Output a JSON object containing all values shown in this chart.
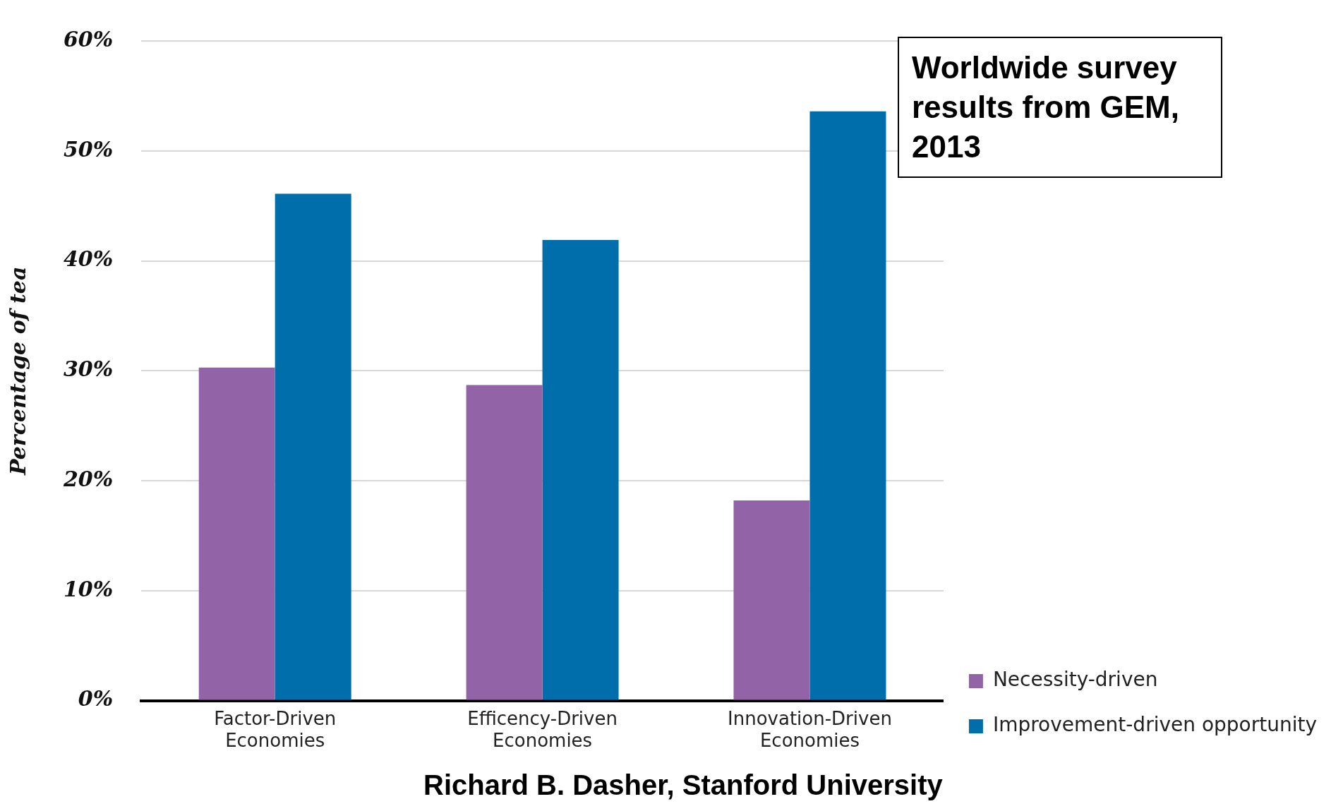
{
  "chart_data": {
    "type": "bar",
    "ylabel": "Percentage of tea",
    "categories": [
      "Factor-Driven Economies",
      "Efficency-Driven Economies",
      "Innovation-Driven Economies"
    ],
    "series": [
      {
        "name": "Necessity-driven",
        "color": "#9363a8",
        "values": [
          30.3,
          28.7,
          18.2
        ]
      },
      {
        "name": "Improvement-driven opportunity",
        "color": "#006eaa",
        "values": [
          46.1,
          41.9,
          53.6
        ]
      }
    ],
    "ylim": [
      0,
      60
    ],
    "yticks": [
      {
        "value": 0,
        "label": "0%"
      },
      {
        "value": 10,
        "label": "10%"
      },
      {
        "value": 20,
        "label": "20%"
      },
      {
        "value": 30,
        "label": "30%"
      },
      {
        "value": 40,
        "label": "40%"
      },
      {
        "value": 50,
        "label": "50%"
      },
      {
        "value": 60,
        "label": "60%"
      }
    ],
    "grid": "y",
    "legend": "bottom right",
    "annotations": [
      "Worldwide survey results from GEM, 2013",
      "Richard B. Dasher, Stanford University"
    ]
  }
}
